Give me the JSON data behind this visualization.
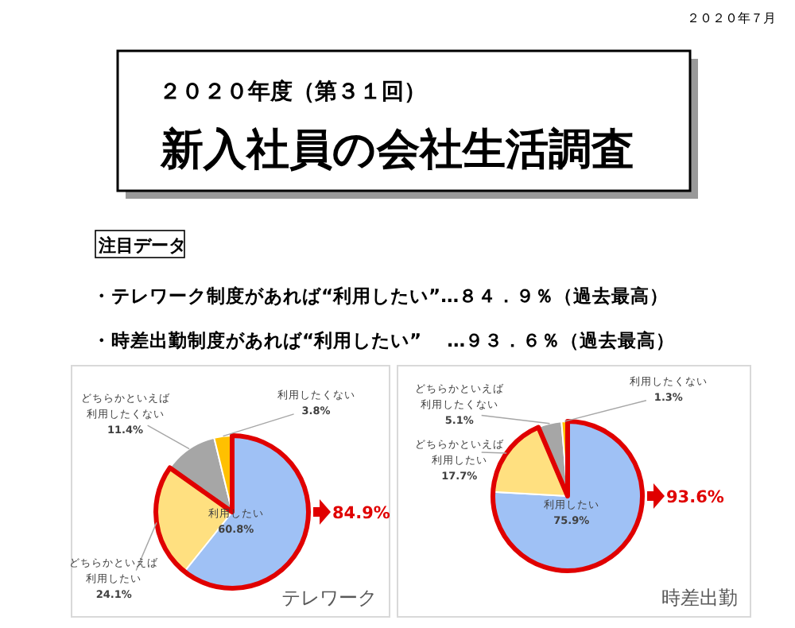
{
  "chart_data": [
    {
      "type": "other",
      "title": "新入社員の会社生活調査",
      "subtitle": "２０２０年度（第３１回）",
      "annotations": [
        "２０２０年７月",
        "注目データ",
        "・テレワーク制度があれば“利用したい”…８４．９％（過去最高）",
        "・時差出勤制度があれば“利用したい”　 …９３．６％（過去最高）"
      ]
    },
    {
      "type": "pie",
      "title": "テレワーク",
      "categories": [
        "利用したい",
        "どちらかといえば利用したい",
        "どちらかといえば利用したくない",
        "利用したくない"
      ],
      "values": [
        60.8,
        24.1,
        11.4,
        3.8
      ],
      "colors": [
        "#9fc1f5",
        "#ffe080",
        "#a6a6a6",
        "#ffc000"
      ],
      "value_labels": [
        "60.8%",
        "24.1%",
        "11.4%",
        "3.8%"
      ],
      "annotations": [
        "84.9%"
      ]
    },
    {
      "type": "pie",
      "title": "時差出勤",
      "categories": [
        "利用したい",
        "どちらかといえば利用したい",
        "どちらかといえば利用したくない",
        "利用したくない"
      ],
      "values": [
        75.9,
        17.7,
        5.1,
        1.3
      ],
      "colors": [
        "#9fc1f5",
        "#ffe080",
        "#a6a6a6",
        "#ffc000"
      ],
      "value_labels": [
        "75.9%",
        "17.7%",
        "5.1%",
        "1.3%"
      ],
      "annotations": [
        "93.6%"
      ]
    }
  ]
}
